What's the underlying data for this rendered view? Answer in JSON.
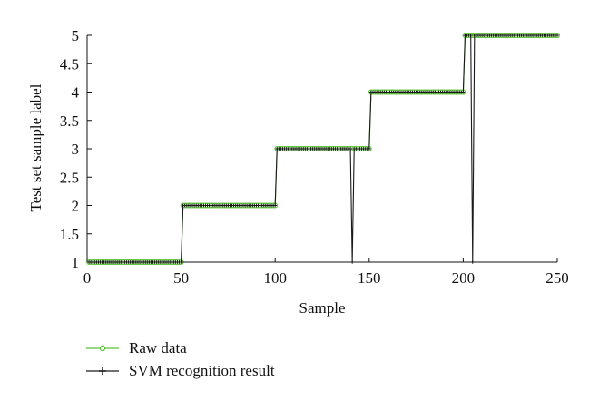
{
  "chart_data": {
    "type": "line",
    "xlabel": "Sample",
    "ylabel": "Test set sample label",
    "xlim": [
      0,
      250
    ],
    "ylim": [
      1,
      5
    ],
    "x_ticks": [
      "0",
      "50",
      "100",
      "150",
      "200",
      "250"
    ],
    "y_ticks": [
      "1",
      "1.5",
      "2",
      "2.5",
      "3",
      "3.5",
      "4",
      "4.5",
      "5"
    ],
    "grid": false,
    "legend_placement": "below-left",
    "series": [
      {
        "name": "Raw data",
        "color": "#5bc236",
        "marker": "open-circle",
        "segments": [
          {
            "x_start": 1,
            "x_end": 50,
            "value": 1
          },
          {
            "x_start": 51,
            "x_end": 100,
            "value": 2
          },
          {
            "x_start": 101,
            "x_end": 150,
            "value": 3
          },
          {
            "x_start": 151,
            "x_end": 200,
            "value": 4
          },
          {
            "x_start": 201,
            "x_end": 250,
            "value": 5
          }
        ]
      },
      {
        "name": "SVM recognition result",
        "color": "#1a1a1a",
        "marker": "plus",
        "segments": [
          {
            "x_start": 1,
            "x_end": 50,
            "value": 1
          },
          {
            "x_start": 51,
            "x_end": 100,
            "value": 2
          },
          {
            "x_start": 101,
            "x_end": 150,
            "value": 3
          },
          {
            "x_start": 151,
            "x_end": 200,
            "value": 4
          },
          {
            "x_start": 201,
            "x_end": 250,
            "value": 5
          }
        ],
        "misclassified": [
          {
            "x": 141,
            "value": 1
          },
          {
            "x": 205,
            "value": 1
          }
        ]
      }
    ]
  }
}
